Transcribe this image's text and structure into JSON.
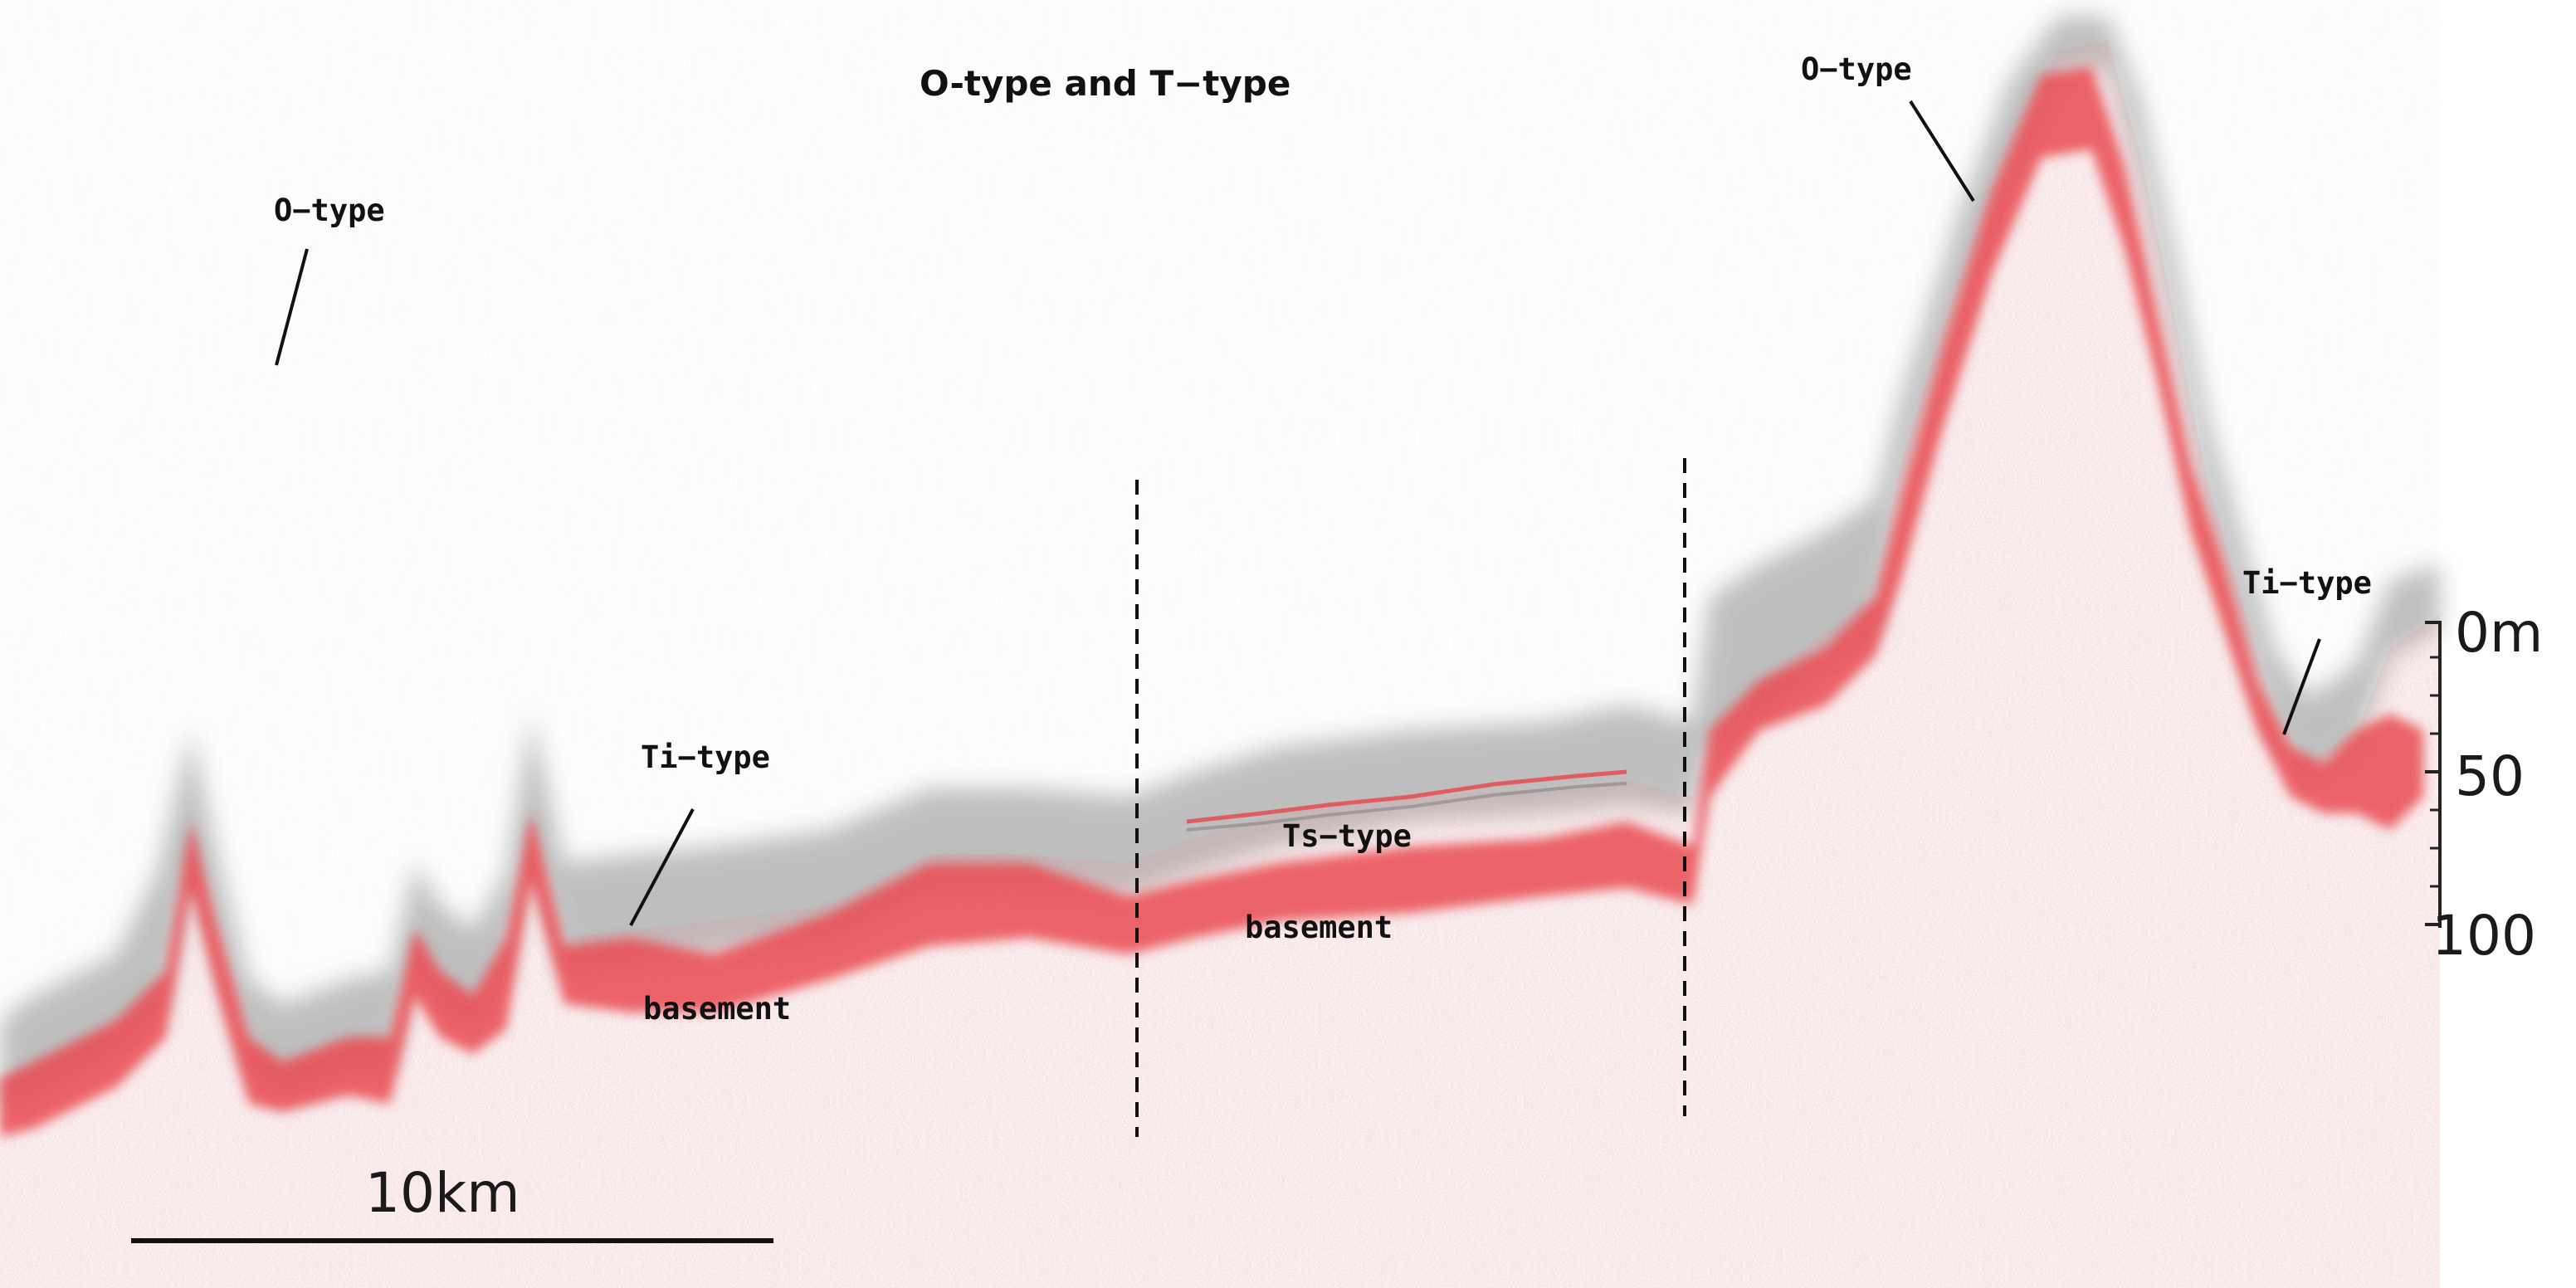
{
  "figure": {
    "title": "O-type and T−type",
    "labels": {
      "o_type_left": "O−type",
      "o_type_right": "O−type",
      "ti_type_left": "Ti−type",
      "ti_type_right": "Ti−type",
      "ts_type": "Ts−type",
      "basement_left": "basement",
      "basement_center": "basement"
    },
    "depth_scale": {
      "ticks": [
        "0m",
        "50",
        "100"
      ]
    },
    "horizontal_scale": {
      "label": "10km"
    },
    "colors": {
      "reflector": "#e8434a",
      "seafloor_shadow": "#8c8c8c",
      "text": "#111111",
      "background": "#ffffff"
    }
  }
}
